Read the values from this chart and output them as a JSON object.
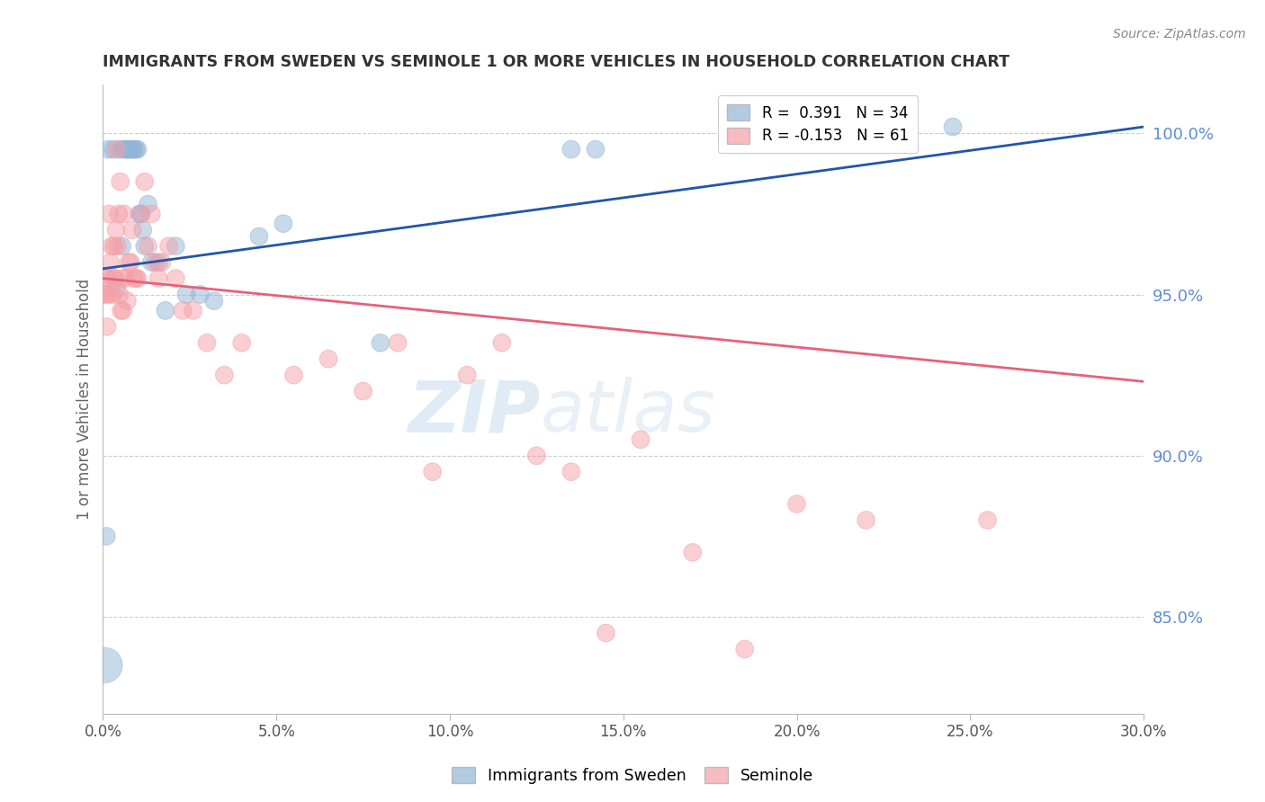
{
  "title": "IMMIGRANTS FROM SWEDEN VS SEMINOLE 1 OR MORE VEHICLES IN HOUSEHOLD CORRELATION CHART",
  "source": "Source: ZipAtlas.com",
  "ylabel": "1 or more Vehicles in Household",
  "xmin": 0.0,
  "xmax": 30.0,
  "ymin": 82.0,
  "ymax": 101.5,
  "yticks": [
    85.0,
    90.0,
    95.0,
    100.0
  ],
  "xticks": [
    0.0,
    5.0,
    10.0,
    15.0,
    20.0,
    25.0,
    30.0
  ],
  "blue_color": "#92B4D7",
  "pink_color": "#F4A0A8",
  "blue_line_color": "#2255AA",
  "pink_line_color": "#E8607A",
  "legend_R_blue": "R =  0.391",
  "legend_N_blue": "N = 34",
  "legend_R_pink": "R = -0.153",
  "legend_N_pink": "N = 61",
  "blue_trend_x0": 0.0,
  "blue_trend_y0": 95.8,
  "blue_trend_x1": 30.0,
  "blue_trend_y1": 100.2,
  "pink_trend_x0": 0.0,
  "pink_trend_y0": 95.5,
  "pink_trend_x1": 30.0,
  "pink_trend_y1": 92.3,
  "blue_x": [
    0.15,
    0.3,
    0.5,
    0.6,
    0.65,
    0.7,
    0.75,
    0.8,
    0.85,
    0.9,
    0.95,
    1.0,
    1.05,
    1.1,
    1.15,
    1.2,
    1.3,
    1.4,
    1.6,
    1.8,
    2.1,
    2.4,
    2.8,
    3.2,
    4.5,
    5.2,
    8.0,
    13.5,
    14.2,
    24.5,
    0.05,
    0.1,
    0.4,
    0.55
  ],
  "blue_y": [
    99.5,
    99.5,
    99.5,
    99.5,
    99.5,
    99.5,
    99.5,
    99.5,
    99.5,
    99.5,
    99.5,
    99.5,
    97.5,
    97.5,
    97.0,
    96.5,
    97.8,
    96.0,
    96.0,
    94.5,
    96.5,
    95.0,
    95.0,
    94.8,
    96.8,
    97.2,
    93.5,
    99.5,
    99.5,
    100.2,
    83.5,
    87.5,
    95.2,
    96.5
  ],
  "blue_sizes_raw": [
    200,
    200,
    200,
    200,
    200,
    200,
    200,
    200,
    200,
    200,
    200,
    200,
    200,
    200,
    200,
    200,
    200,
    200,
    200,
    200,
    200,
    200,
    200,
    200,
    200,
    200,
    200,
    200,
    200,
    200,
    800,
    200,
    200,
    200
  ],
  "pink_x": [
    0.05,
    0.1,
    0.15,
    0.2,
    0.25,
    0.3,
    0.35,
    0.4,
    0.45,
    0.5,
    0.55,
    0.6,
    0.65,
    0.7,
    0.75,
    0.8,
    0.85,
    0.9,
    0.95,
    1.0,
    1.1,
    1.2,
    1.3,
    1.4,
    1.5,
    1.6,
    1.7,
    1.9,
    2.1,
    2.3,
    2.6,
    3.0,
    3.5,
    4.0,
    5.5,
    6.5,
    7.5,
    8.5,
    9.5,
    10.5,
    11.5,
    12.5,
    13.5,
    14.5,
    15.5,
    17.0,
    18.5,
    20.0,
    22.0,
    25.5,
    0.08,
    0.12,
    0.18,
    0.22,
    0.28,
    0.32,
    0.38,
    0.42,
    0.48,
    0.52,
    0.58
  ],
  "pink_y": [
    95.0,
    95.5,
    95.5,
    95.0,
    96.5,
    95.5,
    95.5,
    99.5,
    97.5,
    98.5,
    95.5,
    97.5,
    95.5,
    94.8,
    96.0,
    96.0,
    97.0,
    95.5,
    95.5,
    95.5,
    97.5,
    98.5,
    96.5,
    97.5,
    96.0,
    95.5,
    96.0,
    96.5,
    95.5,
    94.5,
    94.5,
    93.5,
    92.5,
    93.5,
    92.5,
    93.0,
    92.0,
    93.5,
    89.5,
    92.5,
    93.5,
    90.0,
    89.5,
    84.5,
    90.5,
    87.0,
    84.0,
    88.5,
    88.0,
    88.0,
    95.0,
    94.0,
    97.5,
    96.0,
    95.0,
    96.5,
    97.0,
    96.5,
    95.0,
    94.5,
    94.5
  ],
  "pink_sizes_raw": [
    200,
    200,
    200,
    200,
    200,
    200,
    200,
    200,
    200,
    200,
    200,
    200,
    200,
    200,
    200,
    200,
    200,
    200,
    200,
    200,
    200,
    200,
    200,
    200,
    200,
    200,
    200,
    200,
    200,
    200,
    200,
    200,
    200,
    200,
    200,
    200,
    200,
    200,
    200,
    200,
    200,
    200,
    200,
    200,
    200,
    200,
    200,
    200,
    200,
    200,
    200,
    200,
    200,
    200,
    200,
    200,
    200,
    200,
    200,
    200,
    200
  ],
  "watermark_zip": "ZIP",
  "watermark_atlas": "atlas",
  "background_color": "#FFFFFF",
  "grid_color": "#CCCCCC",
  "axis_color": "#BBBBBB",
  "title_color": "#333333",
  "right_label_color": "#5B8DD9",
  "source_color": "#888888"
}
